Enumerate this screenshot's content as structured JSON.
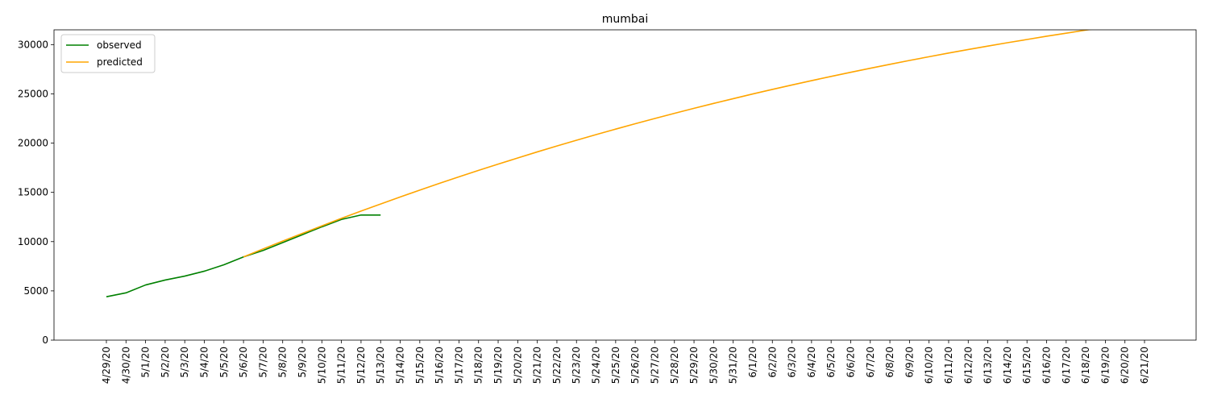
{
  "chart_data": {
    "type": "line",
    "title": "mumbai",
    "xlabel": "",
    "ylabel": "",
    "ylim": [
      0,
      31500
    ],
    "yticks": [
      0,
      5000,
      10000,
      15000,
      20000,
      25000,
      30000
    ],
    "grid": false,
    "legend_position": "upper-left",
    "x": [
      "4/29/20",
      "4/30/20",
      "5/1/20",
      "5/2/20",
      "5/3/20",
      "5/4/20",
      "5/5/20",
      "5/6/20",
      "5/7/20",
      "5/8/20",
      "5/9/20",
      "5/10/20",
      "5/11/20",
      "5/12/20",
      "5/13/20",
      "5/14/20",
      "5/15/20",
      "5/16/20",
      "5/17/20",
      "5/18/20",
      "5/19/20",
      "5/20/20",
      "5/21/20",
      "5/22/20",
      "5/23/20",
      "5/24/20",
      "5/25/20",
      "5/26/20",
      "5/27/20",
      "5/28/20",
      "5/29/20",
      "5/30/20",
      "5/31/20",
      "6/1/20",
      "6/2/20",
      "6/3/20",
      "6/4/20",
      "6/5/20",
      "6/6/20",
      "6/7/20",
      "6/8/20",
      "6/9/20",
      "6/10/20",
      "6/11/20",
      "6/12/20",
      "6/13/20",
      "6/14/20",
      "6/15/20",
      "6/16/20",
      "6/17/20",
      "6/18/20",
      "6/19/20",
      "6/20/20",
      "6/21/20"
    ],
    "series": [
      {
        "name": "observed",
        "color": "#008000",
        "x": [
          "4/29/20",
          "4/30/20",
          "5/1/20",
          "5/2/20",
          "5/3/20",
          "5/4/20",
          "5/5/20",
          "5/6/20",
          "5/7/20",
          "5/8/20",
          "5/9/20",
          "5/10/20",
          "5/11/20",
          "5/12/20",
          "5/13/20"
        ],
        "values": [
          4400,
          4800,
          5600,
          6100,
          6500,
          7000,
          7650,
          8450,
          9100,
          9900,
          10700,
          11500,
          12250,
          12700,
          12700
        ]
      },
      {
        "name": "predicted",
        "color": "#ffa500",
        "x": [
          "5/6/20",
          "5/7/20",
          "5/8/20",
          "5/9/20",
          "5/10/20",
          "5/11/20",
          "5/12/20",
          "5/13/20",
          "5/14/20",
          "5/15/20",
          "5/16/20",
          "5/17/20",
          "5/18/20",
          "5/19/20",
          "5/20/20",
          "5/21/20",
          "5/22/20",
          "5/23/20",
          "5/24/20",
          "5/25/20",
          "5/26/20",
          "5/27/20",
          "5/28/20",
          "5/29/20",
          "5/30/20",
          "5/31/20",
          "6/1/20",
          "6/2/20",
          "6/3/20",
          "6/4/20",
          "6/5/20",
          "6/6/20",
          "6/7/20",
          "6/8/20",
          "6/9/20",
          "6/10/20",
          "6/11/20",
          "6/12/20",
          "6/13/20",
          "6/14/20",
          "6/15/20",
          "6/16/20",
          "6/17/20",
          "6/18/20",
          "6/19/20",
          "6/20/20",
          "6/21/20"
        ],
        "values": [
          8450,
          9260,
          10050,
          10830,
          11600,
          12360,
          13100,
          13820,
          14530,
          15230,
          15910,
          16580,
          17230,
          17870,
          18490,
          19110,
          19710,
          20290,
          20860,
          21420,
          21970,
          22500,
          23020,
          23530,
          24030,
          24510,
          24990,
          25450,
          25900,
          26340,
          26770,
          27190,
          27600,
          28000,
          28390,
          28770,
          29140,
          29500,
          29850,
          30190,
          30520,
          30850,
          31160,
          31470,
          31770,
          32060,
          32350
        ]
      }
    ]
  }
}
